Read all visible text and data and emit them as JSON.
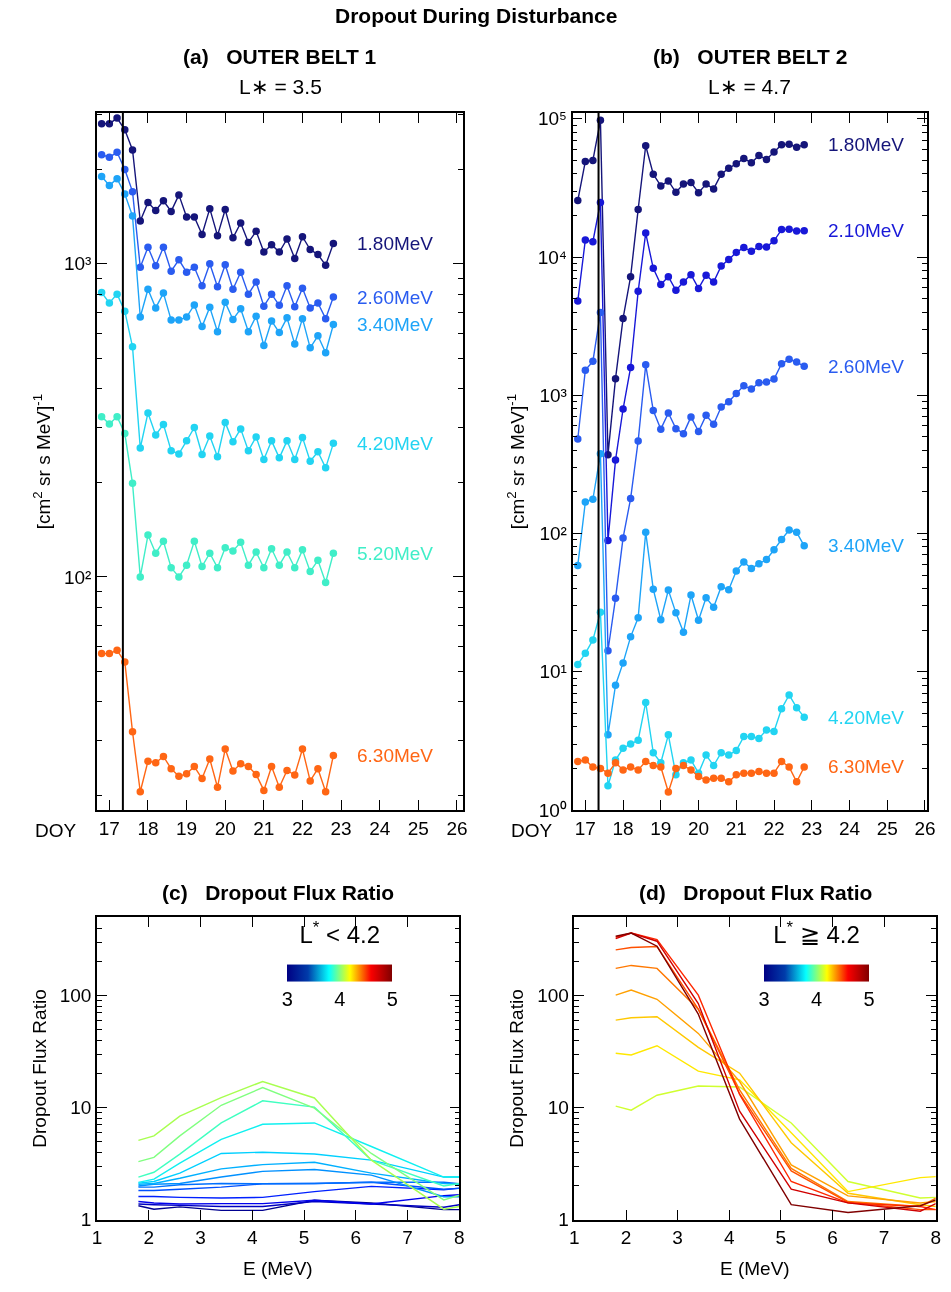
{
  "chart_data": [
    {
      "type": "line",
      "title": "(a)   OUTER BELT 1",
      "subtitle": "L∗ = 3.5",
      "annotations": [
        "Dropout During Disturbance"
      ],
      "xlabel": "DOY",
      "ylabel": "[cm$^{2}$ sr s MeV]$^{-1}$",
      "marker": "circle",
      "log": "y",
      "legend": false,
      "xlim": [
        16.68,
        26.16
      ],
      "xticks": [
        17,
        18,
        19,
        20,
        21,
        22,
        23,
        24,
        25,
        26
      ],
      "ylim": [
        18,
        3030
      ],
      "yticks": [
        {
          "value": 100,
          "label": "10²"
        },
        {
          "value": 1000,
          "label": "10³"
        }
      ],
      "x": [
        16.8,
        17.0,
        17.2,
        17.4,
        17.6,
        17.8,
        18.0,
        18.2,
        18.4,
        18.6,
        18.8,
        19.0,
        19.2,
        19.4,
        19.6,
        19.8,
        20.0,
        20.2,
        20.4,
        20.6,
        20.8,
        21.0,
        21.2,
        21.4,
        21.6,
        21.8,
        22.0,
        22.2,
        22.4,
        22.6,
        22.8
      ],
      "ref_lines": [
        {
          "axis": "x",
          "value": 17.35,
          "color": "#000000"
        }
      ],
      "series": [
        {
          "name": "1.80MeV",
          "color": "#15157a",
          "values": [
            2800,
            2800,
            2920,
            2680,
            2310,
            1370,
            1570,
            1480,
            1590,
            1470,
            1660,
            1410,
            1410,
            1240,
            1500,
            1230,
            1490,
            1210,
            1350,
            1170,
            1270,
            1090,
            1150,
            1090,
            1200,
            1040,
            1220,
            1110,
            1070,
            990,
            1160
          ]
        },
        {
          "name": "2.60MeV",
          "color": "#2a5cf0",
          "values": [
            2230,
            2190,
            2270,
            2000,
            1700,
            975,
            1130,
            986,
            1130,
            947,
            1030,
            940,
            975,
            851,
            1000,
            845,
            993,
            829,
            940,
            800,
            875,
            732,
            800,
            737,
            851,
            729,
            835,
            723,
            750,
            668,
            783
          ]
        },
        {
          "name": "3.40MeV",
          "color": "#1ea4f8",
          "values": [
            1900,
            1780,
            1870,
            1670,
            1420,
            676,
            829,
            723,
            806,
            661,
            661,
            676,
            739,
            630,
            726,
            607,
            753,
            664,
            718,
            607,
            680,
            548,
            657,
            603,
            672,
            554,
            668,
            539,
            589,
            520,
            640
          ]
        },
        {
          "name": "4.20MeV",
          "color": "#22d4f2",
          "values": [
            809,
            750,
            800,
            706,
            543,
            258,
            334,
            284,
            307,
            253,
            247,
            272,
            300,
            246,
            282,
            242,
            311,
            270,
            297,
            253,
            280,
            237,
            272,
            240,
            272,
            237,
            279,
            234,
            251,
            223,
            267
          ]
        },
        {
          "name": "5.20MeV",
          "color": "#40eec8",
          "values": [
            325,
            308,
            325,
            287,
            199,
            100,
            136,
            119,
            130,
            107,
            100,
            109,
            130,
            108,
            119,
            107,
            124,
            121,
            129,
            109,
            120,
            107,
            123,
            109,
            120,
            107,
            122,
            104,
            113,
            96,
            119
          ]
        },
        {
          "name": "6.30MeV",
          "color": "#ff6614",
          "values": [
            56.9,
            56.9,
            58.3,
            53.5,
            32,
            20.6,
            25.8,
            25.5,
            26.7,
            24.4,
            23.1,
            23.5,
            24.8,
            22.7,
            26.2,
            21.3,
            28.2,
            24,
            25.3,
            24.8,
            23.4,
            20.8,
            24.8,
            21.3,
            24.1,
            23.3,
            28.2,
            22.3,
            24.4,
            20.6,
            26.9
          ]
        }
      ]
    },
    {
      "type": "line",
      "title": "(b)   OUTER BELT 2",
      "subtitle": "L∗ = 4.7",
      "xlabel": "DOY",
      "ylabel": "[cm$^{2}$ sr s MeV]$^{-1}$",
      "marker": "circle",
      "log": "y",
      "legend": false,
      "xlim": [
        16.66,
        26.06
      ],
      "xticks": [
        17,
        18,
        19,
        20,
        21,
        22,
        23,
        24,
        25,
        26
      ],
      "ylim": [
        1,
        110000
      ],
      "yticks": [
        {
          "value": 1,
          "label": "10⁰"
        },
        {
          "value": 10,
          "label": "10¹"
        },
        {
          "value": 100,
          "label": "10²"
        },
        {
          "value": 1000,
          "label": "10³"
        },
        {
          "value": 10000,
          "label": "10⁴"
        },
        {
          "value": 100000,
          "label": "10⁵"
        }
      ],
      "x": [
        16.8,
        17.0,
        17.2,
        17.4,
        17.6,
        17.8,
        18.0,
        18.2,
        18.4,
        18.6,
        18.8,
        19.0,
        19.2,
        19.4,
        19.6,
        19.8,
        20.0,
        20.2,
        20.4,
        20.6,
        20.8,
        21.0,
        21.2,
        21.4,
        21.6,
        21.8,
        22.0,
        22.2,
        22.4,
        22.6,
        22.8
      ],
      "ref_lines": [
        {
          "axis": "x",
          "value": 17.35,
          "color": "#000000"
        }
      ],
      "series": [
        {
          "name": "1.80MeV",
          "color": "#15157a",
          "values": [
            25600,
            49100,
            50000,
            97500,
            372,
            1320,
            3600,
            7210,
            22100,
            63800,
            39700,
            32700,
            35500,
            29400,
            33700,
            34600,
            29200,
            33700,
            31100,
            39700,
            43900,
            47200,
            51700,
            48000,
            54200,
            50800,
            57400,
            64900,
            65400,
            62300,
            64900
          ]
        },
        {
          "name": "2.10MeV",
          "color": "#1818d8",
          "values": [
            4800,
            13300,
            12900,
            24800,
            89,
            340,
            796,
            1590,
            5650,
            14900,
            8280,
            6320,
            7210,
            5740,
            6590,
            7450,
            5930,
            7390,
            6590,
            8630,
            9590,
            10800,
            11700,
            11000,
            11900,
            11800,
            13100,
            15800,
            15900,
            15400,
            15500
          ]
        },
        {
          "name": "2.60MeV",
          "color": "#2a5cf0",
          "values": [
            483,
            1520,
            1760,
            3970,
            14.2,
            34,
            93,
            179,
            468,
            1660,
            776,
            569,
            745,
            574,
            528,
            698,
            547,
            716,
            618,
            822,
            899,
            1030,
            1170,
            1110,
            1230,
            1250,
            1310,
            1690,
            1820,
            1740,
            1620
          ]
        },
        {
          "name": "3.40MeV",
          "color": "#1ea4f8",
          "values": [
            58.8,
            169,
            177,
            377,
            3.5,
            8.0,
            11.6,
            17.9,
            24.6,
            102,
            39.6,
            23.8,
            39.0,
            26.7,
            19.3,
            35.9,
            23.6,
            34.4,
            29.3,
            41.3,
            39.3,
            53.7,
            62.2,
            55.8,
            60.6,
            64.8,
            76.3,
            90.6,
            106,
            102,
            81.5
          ]
        },
        {
          "name": "4.20MeV",
          "color": "#22d4f2",
          "values": [
            11.3,
            13.6,
            17,
            27,
            1.5,
            2.3,
            2.8,
            3.0,
            3.2,
            6.0,
            2.6,
            2.2,
            3.5,
            1.8,
            2.2,
            2.3,
            1.85,
            2.5,
            2.1,
            2.6,
            2.5,
            2.7,
            3.4,
            3.4,
            3.3,
            3.8,
            3.7,
            5.4,
            6.8,
            5.5,
            4.7
          ]
        },
        {
          "name": "6.30MeV",
          "color": "#ff6614",
          "values": [
            2.25,
            2.3,
            2.05,
            2.0,
            1.85,
            2.2,
            1.95,
            2.05,
            1.95,
            2.25,
            2.1,
            2.05,
            1.35,
            2.0,
            2.1,
            1.95,
            1.75,
            1.65,
            1.7,
            1.7,
            1.6,
            1.8,
            1.85,
            1.85,
            1.9,
            1.85,
            1.85,
            2.25,
            2.05,
            1.6,
            2.05
          ]
        }
      ]
    },
    {
      "type": "line",
      "title": "(c)   Dropout Flux Ratio",
      "xlabel": "E (MeV)",
      "ylabel": "Dropout Flux Ratio",
      "log": "y",
      "legend": false,
      "xlim": [
        1,
        8
      ],
      "xticks": [
        1,
        2,
        3,
        4,
        5,
        6,
        7,
        8
      ],
      "ylim": [
        1,
        500
      ],
      "yticks": [
        1,
        10,
        100
      ],
      "clabel": "L$^{*}$ < 4.2",
      "clim": [
        3,
        5
      ],
      "cticks": [
        3,
        4,
        5
      ],
      "x": [
        1.8,
        2.1,
        2.6,
        3.4,
        4.2,
        5.2,
        6.3,
        7.7,
        8.0
      ],
      "series": [
        {
          "color": "#000090",
          "values": [
            1.33,
            1.24,
            1.3,
            1.21,
            1.21,
            1.49,
            1.41,
            1.23,
            1.23
          ]
        },
        {
          "color": "#0000c0",
          "values": [
            1.38,
            1.36,
            1.34,
            1.31,
            1.31,
            1.45,
            1.38,
            1.29,
            1.36
          ]
        },
        {
          "color": "#0000ee",
          "values": [
            1.45,
            1.41,
            1.38,
            1.39,
            1.39,
            1.49,
            1.38,
            1.64,
            1.67
          ]
        },
        {
          "color": "#0020ff",
          "values": [
            1.61,
            1.61,
            1.58,
            1.56,
            1.58,
            1.78,
            1.98,
            1.85,
            1.91
          ]
        },
        {
          "color": "#0050ff",
          "values": [
            1.82,
            1.82,
            1.87,
            1.95,
            2.09,
            2.1,
            2.16,
            1.87,
            1.9
          ]
        },
        {
          "color": "#0070ff",
          "values": [
            1.95,
            1.95,
            2.05,
            2.1,
            2.09,
            2.1,
            2.16,
            2.16,
            2.09
          ]
        },
        {
          "color": "#0090ff",
          "values": [
            2.0,
            2.07,
            2.1,
            2.4,
            2.7,
            2.8,
            2.5,
            1.6,
            1.6
          ]
        },
        {
          "color": "#00b0ff",
          "values": [
            2.07,
            2.1,
            2.34,
            2.84,
            3.1,
            3.25,
            2.6,
            2.1,
            2.07
          ]
        },
        {
          "color": "#00d0ff",
          "values": [
            2.12,
            2.19,
            2.6,
            3.9,
            4.0,
            3.85,
            3.4,
            2.4,
            2.4
          ]
        },
        {
          "color": "#10f0f0",
          "values": [
            2.15,
            2.3,
            3.2,
            5.2,
            7.1,
            7.3,
            4.5,
            2.4,
            2.4
          ]
        },
        {
          "color": "#40ffc0",
          "values": [
            2.4,
            2.65,
            3.85,
            7.3,
            11.5,
            10.1,
            3.4,
            2.0,
            2.1
          ]
        },
        {
          "color": "#80ff80",
          "values": [
            3.3,
            3.6,
            5.6,
            10.5,
            15.1,
            9.9,
            3.9,
            1.5,
            1.65
          ]
        },
        {
          "color": "#a8ff50",
          "values": [
            5.1,
            5.6,
            8.4,
            12.3,
            17.1,
            12.2,
            3.4,
            1.24,
            1.31
          ]
        }
      ]
    },
    {
      "type": "line",
      "title": "(d)   Dropout Flux Ratio",
      "xlabel": "E (MeV)",
      "ylabel": "Dropout Flux Ratio",
      "log": "y",
      "legend": false,
      "xlim": [
        1,
        8
      ],
      "xticks": [
        1,
        2,
        3,
        4,
        5,
        6,
        7,
        8
      ],
      "ylim": [
        1,
        500
      ],
      "yticks": [
        1,
        10,
        100
      ],
      "clabel": "L$^{*}$ ≧ 4.2",
      "clim": [
        3,
        5
      ],
      "cticks": [
        3,
        4,
        5
      ],
      "x": [
        1.8,
        2.1,
        2.6,
        3.4,
        4.2,
        5.2,
        6.3,
        7.7,
        8.0
      ],
      "series": [
        {
          "color": "#d0ff30",
          "values": [
            10.3,
            9.5,
            12.9,
            15.6,
            15.3,
            7.3,
            2.19,
            1.56,
            1.58
          ]
        },
        {
          "color": "#ffe800",
          "values": [
            30.6,
            29.5,
            35.7,
            21.2,
            17.7,
            5.96,
            1.78,
            2.37,
            2.42
          ]
        },
        {
          "color": "#ffc800",
          "values": [
            60.4,
            63.4,
            64.7,
            34.5,
            20.3,
            4.86,
            1.72,
            1.36,
            1.31
          ]
        },
        {
          "color": "#ffa000",
          "values": [
            101,
            112,
            92.8,
            46,
            17.1,
            3.08,
            1.63,
            1.41,
            1.45
          ]
        },
        {
          "color": "#ff7800",
          "values": [
            175,
            186,
            175,
            75.6,
            14.4,
            2.87,
            1.45,
            1.31,
            1.56
          ]
        },
        {
          "color": "#ff5000",
          "values": [
            256,
            269,
            274,
            75.6,
            13.3,
            2.72,
            1.43,
            1.23,
            1.23
          ]
        },
        {
          "color": "#ff2800",
          "values": [
            332,
            362,
            316,
            101,
            13.1,
            2.19,
            1.41,
            1.31,
            1.23
          ]
        },
        {
          "color": "#d00000",
          "values": [
            323,
            362,
            306,
            84.9,
            9.3,
            1.87,
            1.41,
            1.19,
            1.39
          ]
        },
        {
          "color": "#800000",
          "values": [
            339,
            362,
            276,
            68.3,
            7.9,
            1.36,
            1.16,
            1.33,
            1.5
          ]
        }
      ]
    }
  ]
}
